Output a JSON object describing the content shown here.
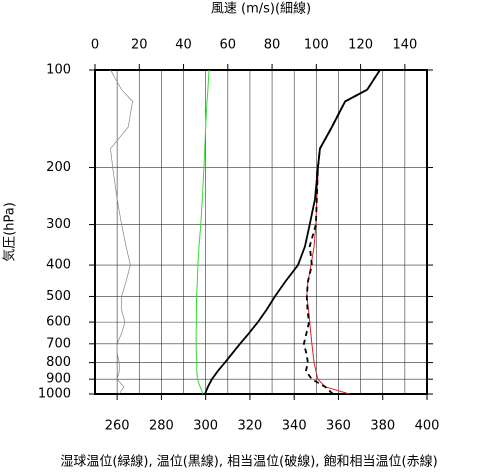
{
  "chart_data": {
    "type": "line",
    "x2label": "風速 (m/s)(細線)",
    "ylabel": "気圧(hPa)",
    "caption": "湿球温位(緑線), 温位(黒線), 相当温位(破線), 飽和相当温位(赤線)",
    "xlim": [
      250,
      400
    ],
    "xticks": [
      260,
      280,
      300,
      320,
      340,
      360,
      380,
      400
    ],
    "x2lim": [
      0,
      150
    ],
    "x2ticks": [
      0,
      20,
      40,
      60,
      80,
      100,
      120,
      140
    ],
    "ylim": [
      1000,
      100
    ],
    "yticks": [
      100,
      200,
      300,
      400,
      500,
      600,
      700,
      800,
      900,
      1000
    ],
    "ylog": true,
    "grid": true,
    "y": [
      1000,
      950,
      900,
      850,
      800,
      750,
      700,
      650,
      600,
      550,
      500,
      450,
      400,
      350,
      300,
      250,
      200,
      175,
      150,
      125,
      115,
      100
    ],
    "series": [
      {
        "name": "風速",
        "color": "#7a8a7a",
        "axis": "x2",
        "dash": false,
        "width": 0.7,
        "values": [
          11,
          13,
          10,
          11,
          11,
          10,
          10,
          12,
          13.5,
          12,
          12,
          14,
          16,
          14,
          12,
          10,
          8,
          7,
          15,
          17,
          12,
          7
        ]
      },
      {
        "name": "湿球温位",
        "color": "#33dd33",
        "axis": "x",
        "dash": false,
        "width": 1,
        "values": [
          298.8,
          297.5,
          296.3,
          296,
          296,
          295.8,
          295.7,
          295.7,
          295.8,
          295.8,
          295.9,
          296.2,
          296.5,
          297,
          297.8,
          298.5,
          299.2,
          299.6,
          300,
          300.6,
          301,
          301.5
        ]
      },
      {
        "name": "飽和相当温位",
        "color": "#e02020",
        "axis": "x",
        "dash": false,
        "width": 1,
        "values": [
          365,
          354,
          350.7,
          349.8,
          349,
          348.5,
          348,
          347.5,
          347,
          346.5,
          345.7,
          346.2,
          347.6,
          349,
          349.8,
          350.2,
          350.9,
          351.8,
          357.2,
          363.2,
          372.8,
          378.9
        ]
      },
      {
        "name": "相当温位",
        "color": "#000000",
        "axis": "x",
        "dash": true,
        "width": 1.8,
        "values": [
          357.5,
          354,
          348,
          345.3,
          346.2,
          345.5,
          344.4,
          345.5,
          346.7,
          346,
          345.7,
          346.2,
          348,
          347,
          349.8,
          350.2,
          350.7,
          351.6,
          357,
          363,
          373,
          378.7
        ]
      },
      {
        "name": "温位",
        "color": "#000000",
        "axis": "x",
        "dash": false,
        "width": 1.8,
        "values": [
          299.7,
          301,
          302.8,
          305.5,
          308.7,
          312,
          315.5,
          319.5,
          323.6,
          327.5,
          331.3,
          336,
          341.7,
          344.9,
          347,
          349.4,
          350.7,
          351.6,
          357,
          363,
          373,
          378.7
        ]
      }
    ]
  }
}
